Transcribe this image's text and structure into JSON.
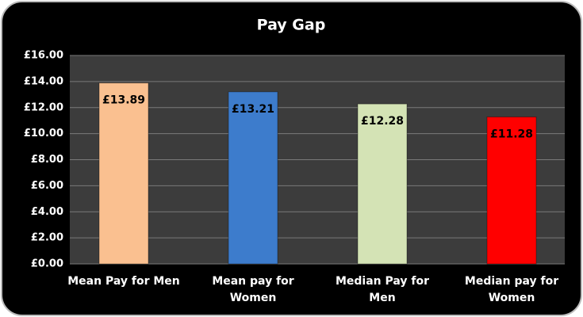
{
  "chart_data": {
    "type": "bar",
    "title": "Pay Gap",
    "categories": [
      "Mean Pay for Men",
      "Mean pay for Women",
      "Median Pay for Men",
      "Median pay for Women"
    ],
    "values": [
      13.89,
      13.21,
      12.28,
      11.28
    ],
    "value_labels": [
      "£13.89",
      "£13.21",
      "£12.28",
      "£11.28"
    ],
    "colors": [
      "#fac090",
      "#3d7ccc",
      "#d4e3b5",
      "#ff0000"
    ],
    "ylim": [
      0,
      16
    ],
    "yticks": [
      {
        "value": 0,
        "label": "£0.00"
      },
      {
        "value": 2,
        "label": "£2.00"
      },
      {
        "value": 4,
        "label": "£4.00"
      },
      {
        "value": 6,
        "label": "£6.00"
      },
      {
        "value": 8,
        "label": "£8.00"
      },
      {
        "value": 10,
        "label": "£10.00"
      },
      {
        "value": 12,
        "label": "£12.00"
      },
      {
        "value": 14,
        "label": "£14.00"
      },
      {
        "value": 16,
        "label": "£16.00"
      }
    ],
    "grid": true
  }
}
